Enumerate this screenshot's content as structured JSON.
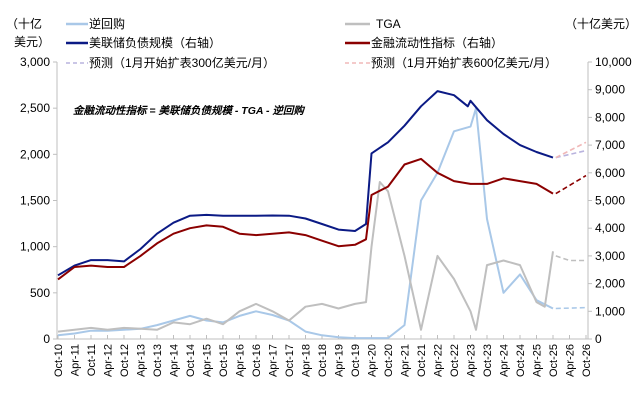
{
  "chart_data": {
    "type": "line",
    "left_axis_title": "（十亿美元）",
    "right_axis_title": "（十亿美元）",
    "left_ylim": [
      0,
      3000
    ],
    "right_ylim": [
      0,
      10000
    ],
    "left_ticks": [
      "0",
      "500",
      "1,000",
      "1,500",
      "2,000",
      "2,500",
      "3,000"
    ],
    "left_tick_values": [
      0,
      500,
      1000,
      1500,
      2000,
      2500,
      3000
    ],
    "right_ticks": [
      "0",
      "1,000",
      "2,000",
      "3,000",
      "4,000",
      "5,000",
      "6,000",
      "7,000",
      "8,000",
      "9,000",
      "10,000"
    ],
    "right_tick_values": [
      0,
      1000,
      2000,
      3000,
      4000,
      5000,
      6000,
      7000,
      8000,
      9000,
      10000
    ],
    "x_ticks": [
      "Oct-10",
      "Apr-11",
      "Oct-11",
      "Apr-12",
      "Oct-12",
      "Apr-13",
      "Oct-13",
      "Apr-14",
      "Oct-14",
      "Apr-15",
      "Oct-15",
      "Apr-16",
      "Oct-16",
      "Apr-17",
      "Oct-17",
      "Apr-18",
      "Oct-18",
      "Apr-19",
      "Oct-19",
      "Apr-20",
      "Oct-20",
      "Apr-21",
      "Oct-21",
      "Apr-22",
      "Oct-22",
      "Apr-23",
      "Oct-23",
      "Apr-24",
      "Oct-24",
      "Apr-25",
      "Oct-25",
      "Apr-26",
      "Oct-26"
    ],
    "x_range": [
      "2010-10",
      "2026-10"
    ],
    "grid": false,
    "legend_placement": "top",
    "annotation": "金融流动性指标 = 美联储负债规模 - TGA - 逆回购",
    "series": [
      {
        "name": "逆回购",
        "axis": "left",
        "color": "#a9c8e8",
        "style": "solid",
        "points": [
          [
            "2010-10",
            40
          ],
          [
            "2011-04",
            60
          ],
          [
            "2011-10",
            90
          ],
          [
            "2012-04",
            90
          ],
          [
            "2012-10",
            100
          ],
          [
            "2013-04",
            110
          ],
          [
            "2013-10",
            150
          ],
          [
            "2014-04",
            200
          ],
          [
            "2014-10",
            250
          ],
          [
            "2015-04",
            200
          ],
          [
            "2015-10",
            180
          ],
          [
            "2016-04",
            250
          ],
          [
            "2016-10",
            300
          ],
          [
            "2017-04",
            260
          ],
          [
            "2017-10",
            200
          ],
          [
            "2018-04",
            80
          ],
          [
            "2018-10",
            40
          ],
          [
            "2019-04",
            20
          ],
          [
            "2019-10",
            10
          ],
          [
            "2020-04",
            10
          ],
          [
            "2020-10",
            10
          ],
          [
            "2021-04",
            150
          ],
          [
            "2021-10",
            1500
          ],
          [
            "2022-04",
            1800
          ],
          [
            "2022-10",
            2250
          ],
          [
            "2023-04",
            2300
          ],
          [
            "2023-06",
            2500
          ],
          [
            "2023-10",
            1300
          ],
          [
            "2024-04",
            500
          ],
          [
            "2024-10",
            700
          ],
          [
            "2025-04",
            420
          ],
          [
            "2025-10",
            330
          ]
        ]
      },
      {
        "name": "TGA",
        "axis": "left",
        "color": "#bfbfbf",
        "style": "solid",
        "points": [
          [
            "2010-10",
            80
          ],
          [
            "2011-04",
            100
          ],
          [
            "2011-10",
            120
          ],
          [
            "2012-04",
            100
          ],
          [
            "2012-10",
            120
          ],
          [
            "2013-04",
            110
          ],
          [
            "2013-10",
            100
          ],
          [
            "2014-04",
            180
          ],
          [
            "2014-10",
            160
          ],
          [
            "2015-04",
            220
          ],
          [
            "2015-10",
            160
          ],
          [
            "2016-04",
            300
          ],
          [
            "2016-10",
            380
          ],
          [
            "2017-04",
            300
          ],
          [
            "2017-10",
            200
          ],
          [
            "2018-04",
            350
          ],
          [
            "2018-10",
            380
          ],
          [
            "2019-04",
            330
          ],
          [
            "2019-10",
            380
          ],
          [
            "2020-02",
            400
          ],
          [
            "2020-04",
            1000
          ],
          [
            "2020-07",
            1700
          ],
          [
            "2020-10",
            1600
          ],
          [
            "2021-04",
            900
          ],
          [
            "2021-10",
            100
          ],
          [
            "2022-04",
            900
          ],
          [
            "2022-10",
            650
          ],
          [
            "2023-04",
            300
          ],
          [
            "2023-06",
            100
          ],
          [
            "2023-10",
            800
          ],
          [
            "2024-04",
            850
          ],
          [
            "2024-10",
            800
          ],
          [
            "2025-04",
            400
          ],
          [
            "2025-07",
            350
          ],
          [
            "2025-10",
            950
          ]
        ]
      },
      {
        "name": "美联储负债规模（右轴）",
        "axis": "right",
        "color": "#0b1a85",
        "style": "solid",
        "points": [
          [
            "2010-10",
            2300
          ],
          [
            "2011-04",
            2650
          ],
          [
            "2011-10",
            2850
          ],
          [
            "2012-04",
            2850
          ],
          [
            "2012-10",
            2800
          ],
          [
            "2013-04",
            3250
          ],
          [
            "2013-10",
            3800
          ],
          [
            "2014-04",
            4200
          ],
          [
            "2014-10",
            4450
          ],
          [
            "2015-04",
            4480
          ],
          [
            "2015-10",
            4450
          ],
          [
            "2016-04",
            4450
          ],
          [
            "2016-10",
            4450
          ],
          [
            "2017-04",
            4460
          ],
          [
            "2017-10",
            4450
          ],
          [
            "2018-04",
            4350
          ],
          [
            "2018-10",
            4150
          ],
          [
            "2019-04",
            3950
          ],
          [
            "2019-10",
            3900
          ],
          [
            "2020-02",
            4150
          ],
          [
            "2020-04",
            6700
          ],
          [
            "2020-10",
            7100
          ],
          [
            "2021-04",
            7700
          ],
          [
            "2021-10",
            8400
          ],
          [
            "2022-04",
            8950
          ],
          [
            "2022-10",
            8800
          ],
          [
            "2023-03",
            8400
          ],
          [
            "2023-04",
            8600
          ],
          [
            "2023-10",
            7900
          ],
          [
            "2024-04",
            7400
          ],
          [
            "2024-10",
            7000
          ],
          [
            "2025-04",
            6750
          ],
          [
            "2025-10",
            6550
          ]
        ]
      },
      {
        "name": "金融流动性指标（右轴）",
        "axis": "right",
        "color": "#8b0000",
        "style": "solid",
        "points": [
          [
            "2010-10",
            2150
          ],
          [
            "2011-04",
            2600
          ],
          [
            "2011-10",
            2650
          ],
          [
            "2012-04",
            2600
          ],
          [
            "2012-10",
            2600
          ],
          [
            "2013-04",
            3000
          ],
          [
            "2013-10",
            3450
          ],
          [
            "2014-04",
            3800
          ],
          [
            "2014-10",
            4000
          ],
          [
            "2015-04",
            4100
          ],
          [
            "2015-10",
            4050
          ],
          [
            "2016-04",
            3800
          ],
          [
            "2016-10",
            3750
          ],
          [
            "2017-04",
            3800
          ],
          [
            "2017-10",
            3850
          ],
          [
            "2018-04",
            3750
          ],
          [
            "2018-10",
            3550
          ],
          [
            "2019-04",
            3350
          ],
          [
            "2019-10",
            3400
          ],
          [
            "2020-02",
            3600
          ],
          [
            "2020-04",
            5200
          ],
          [
            "2020-10",
            5500
          ],
          [
            "2021-04",
            6300
          ],
          [
            "2021-10",
            6500
          ],
          [
            "2022-04",
            6000
          ],
          [
            "2022-10",
            5700
          ],
          [
            "2023-04",
            5600
          ],
          [
            "2023-10",
            5600
          ],
          [
            "2024-04",
            5800
          ],
          [
            "2024-10",
            5700
          ],
          [
            "2025-04",
            5600
          ],
          [
            "2025-10",
            5250
          ]
        ]
      },
      {
        "name": "预测（1月开始扩表300亿美元/月）",
        "axis": "right",
        "color": "#b9b3de",
        "style": "dashed",
        "points": [
          [
            "2025-11",
            6550
          ],
          [
            "2026-10",
            6800
          ]
        ]
      },
      {
        "name": "预测（1月开始扩表600亿美元/月）",
        "axis": "right",
        "color": "#f0b8b8",
        "style": "dashed",
        "points": [
          [
            "2025-11",
            6550
          ],
          [
            "2026-10",
            7100
          ]
        ]
      },
      {
        "name": "",
        "axis": "right",
        "color": "#8b0000",
        "style": "dashed",
        "legend": false,
        "points": [
          [
            "2025-11",
            5250
          ],
          [
            "2026-10",
            5900
          ]
        ]
      },
      {
        "name": "",
        "axis": "left",
        "color": "#bfbfbf",
        "style": "dashed",
        "legend": false,
        "points": [
          [
            "2025-11",
            900
          ],
          [
            "2026-04",
            850
          ],
          [
            "2026-10",
            850
          ]
        ]
      },
      {
        "name": "",
        "axis": "left",
        "color": "#a9c8e8",
        "style": "dashed",
        "legend": false,
        "points": [
          [
            "2025-11",
            330
          ],
          [
            "2026-10",
            340
          ]
        ]
      }
    ]
  },
  "legend": {
    "rrp": "逆回购",
    "tga": "TGA",
    "fed": "美联储负债规模（右轴）",
    "liquidity": "金融流动性指标（右轴）",
    "forecast300": "预测（1月开始扩表300亿美元/月）",
    "forecast600": "预测（1月开始扩表600亿美元/月）"
  },
  "axis_titles": {
    "left_line1": "（十亿",
    "left_line2": "美元）",
    "right": "（十亿美元）"
  }
}
